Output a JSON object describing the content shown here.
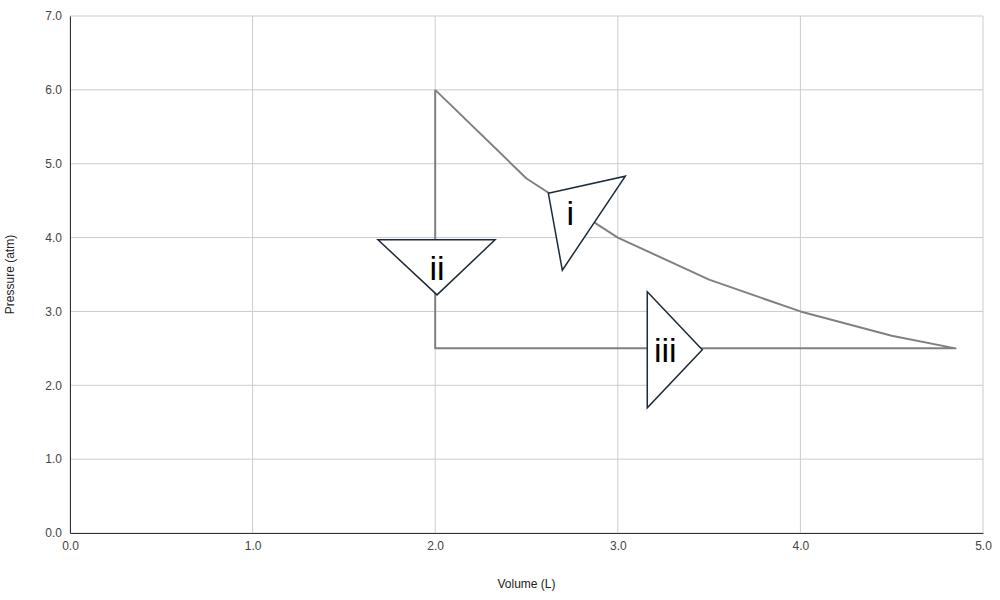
{
  "chart_data": {
    "type": "line",
    "x_label": "Volume (L)",
    "y_label": "Pressure (atm)",
    "x": [
      2,
      2,
      4.85,
      4.5,
      4,
      3.5,
      3,
      2.5,
      2
    ],
    "values": [
      6,
      2.5,
      2.5,
      2.67,
      3,
      3.43,
      4,
      4.8,
      6
    ],
    "color": "#808080",
    "xlim": [
      0,
      5
    ],
    "ylim": [
      0,
      7
    ],
    "xticks": [
      {
        "value": 0,
        "label": "0.0"
      },
      {
        "value": 1,
        "label": "1.0"
      },
      {
        "value": 2,
        "label": "2.0"
      },
      {
        "value": 3,
        "label": "3.0"
      },
      {
        "value": 4,
        "label": "4.0"
      },
      {
        "value": 5,
        "label": "5.0"
      }
    ],
    "yticks": [
      {
        "value": 0,
        "label": "0.0"
      },
      {
        "value": 1,
        "label": "1.0"
      },
      {
        "value": 2,
        "label": "2.0"
      },
      {
        "value": 3,
        "label": "3.0"
      },
      {
        "value": 4,
        "label": "4.0"
      },
      {
        "value": 5,
        "label": "5.0"
      },
      {
        "value": 6,
        "label": "6.0"
      },
      {
        "value": 7,
        "label": "7.0"
      }
    ],
    "grid": true,
    "annotations": [
      {
        "text": "i",
        "x": 2.74,
        "y": 4.33
      },
      {
        "text": "ii",
        "x": 2.01,
        "y": 3.59
      },
      {
        "text": "iii",
        "x": 3.26,
        "y": 2.48
      }
    ]
  }
}
